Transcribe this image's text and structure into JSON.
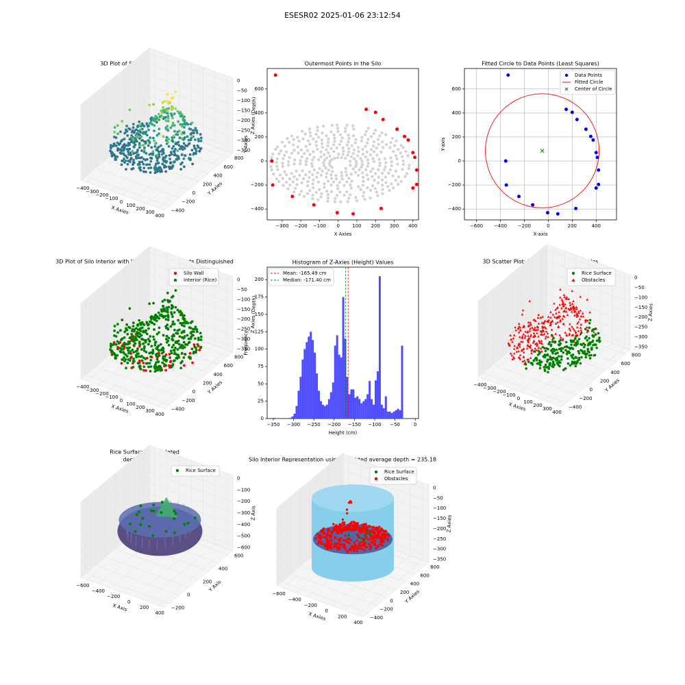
{
  "figure": {
    "suptitle": "ESESR02 2025-01-06 23:12:54"
  },
  "colors": {
    "red": "#ff0000",
    "green": "#008000",
    "blue": "#0000ff",
    "grey": "#d3d3d3",
    "hist": "#4d4dff",
    "cyan": "#87ceeb",
    "grid": "#b0b0b0"
  },
  "chart_data": [
    {
      "id": "p1",
      "type": "scatter3d",
      "title": "3D Plot of Silo Interior(row data)",
      "xlabel": "X Axies",
      "ylabel": "Y Axies",
      "zlabel": "Z Axies (Depth)",
      "xticks": [
        "−400",
        "−300",
        "−200",
        "−100",
        "0",
        "100",
        "200",
        "300",
        "400"
      ],
      "yticks": [
        "−400",
        "−200",
        "0",
        "200",
        "400",
        "600",
        "800"
      ],
      "zticks": [
        "0",
        "−50",
        "−100",
        "−150",
        "−200",
        "−250",
        "−300",
        "−350"
      ],
      "colormap": "viridis"
    },
    {
      "id": "p2",
      "type": "scatter",
      "title": "Outermost Points in the Silo",
      "xlabel": "X Axies",
      "ylabel": "Y Axies",
      "xlim": [
        -380,
        430
      ],
      "ylim": [
        -490,
        770
      ],
      "xticks": [
        -300,
        -200,
        -100,
        0,
        100,
        200,
        300,
        400
      ],
      "yticks": [
        -400,
        -200,
        0,
        200,
        400,
        600
      ],
      "series": [
        {
          "role": "outermost",
          "color": "#ff0000",
          "x": [
            -335,
            -355,
            -350,
            -245,
            -130,
            -5,
            80,
            150,
            200,
            240,
            315,
            355,
            375,
            400,
            410,
            420,
            420,
            400,
            230
          ],
          "y": [
            715,
            0,
            -200,
            -295,
            -365,
            -430,
            -440,
            430,
            405,
            345,
            265,
            205,
            175,
            70,
            30,
            -75,
            -195,
            -225,
            -395
          ]
        }
      ]
    },
    {
      "id": "p3",
      "type": "scatter",
      "title": "Fitted Circle to Data Points (Least Squares)",
      "xlabel": "X-axis",
      "ylabel": "Y-axis",
      "xlim": [
        -700,
        570
      ],
      "ylim": [
        -490,
        770
      ],
      "xticks": [
        -600,
        -400,
        -200,
        0,
        200,
        400
      ],
      "yticks": [
        -400,
        -200,
        0,
        200,
        400,
        600
      ],
      "grid": true,
      "legend": [
        "Data Points",
        "Fitted Circle",
        "Center of Circle"
      ],
      "legend_position": "upper right",
      "circle": {
        "cx": -50,
        "cy": 85,
        "r": 475
      },
      "center": {
        "x": -50,
        "y": 85
      },
      "points": {
        "x": [
          -335,
          -355,
          -350,
          -245,
          -130,
          -5,
          80,
          150,
          200,
          240,
          315,
          355,
          375,
          400,
          410,
          420,
          420,
          400,
          230
        ],
        "y": [
          715,
          0,
          -200,
          -295,
          -365,
          -430,
          -440,
          430,
          405,
          345,
          265,
          205,
          175,
          70,
          30,
          -75,
          -195,
          -225,
          -395
        ]
      }
    },
    {
      "id": "p4",
      "type": "scatter3d",
      "title": "3D Plot of Silo Interior with Wall and Interior Points Distinguished",
      "xlabel": "X Axies",
      "ylabel": "Y Axies",
      "zlabel": "Z Axies (Depth)",
      "xticks": [
        "−400",
        "−300",
        "−200",
        "−100",
        "0",
        "100",
        "200",
        "300",
        "400"
      ],
      "yticks": [
        "−400",
        "−200",
        "0",
        "200",
        "400",
        "600",
        "800"
      ],
      "zticks": [
        "0",
        "−50",
        "−100",
        "−150",
        "−200",
        "−250",
        "−300",
        "−350"
      ],
      "legend": [
        "Silo Wall",
        "Interior (Rice)"
      ],
      "legend_position": "upper right"
    },
    {
      "id": "p5",
      "type": "histogram",
      "title": "Histogram of Z-Axies (Height) Values",
      "xlabel": "Height (cm)",
      "ylabel": "Frequency",
      "xlim": [
        -365,
        8
      ],
      "ylim": [
        0,
        218
      ],
      "xticks": [
        -350,
        -300,
        -250,
        -200,
        -150,
        -100,
        -50,
        0
      ],
      "yticks": [
        0,
        25,
        50,
        75,
        100,
        125,
        150,
        175,
        200
      ],
      "bin_start": -350,
      "bin_width": 5,
      "counts": [
        1,
        0,
        0,
        0,
        0,
        0,
        0,
        0,
        1,
        3,
        7,
        18,
        40,
        60,
        85,
        100,
        110,
        118,
        125,
        113,
        95,
        65,
        40,
        25,
        20,
        18,
        20,
        28,
        38,
        52,
        105,
        120,
        92,
        88,
        175,
        115,
        60,
        35,
        42,
        42,
        30,
        32,
        28,
        22,
        25,
        28,
        35,
        54,
        28,
        20,
        55,
        68,
        205,
        20,
        15,
        32,
        10,
        10,
        8,
        10,
        12,
        14,
        12,
        105
      ],
      "mean": -165.49,
      "median": -171.4,
      "legend": [
        "Mean: -165.49 cm",
        "Median: -171.40 cm"
      ],
      "legend_position": "upper left"
    },
    {
      "id": "p6",
      "type": "scatter3d",
      "title": "3D Scatter Plot: Rice Surface vs Obstacles",
      "xlabel": "X Axies",
      "ylabel": "Y Axies",
      "zlabel": "Z Axies",
      "xticks": [
        "−400",
        "−300",
        "−200",
        "−100",
        "0",
        "100",
        "200",
        "300",
        "400"
      ],
      "yticks": [
        "−400",
        "−200",
        "0",
        "200",
        "400",
        "600",
        "800"
      ],
      "zticks": [
        "0",
        "−50",
        "−100",
        "−150",
        "−200",
        "−250",
        "−300",
        "−350"
      ],
      "legend": [
        "Rice Surface",
        "Obstacles"
      ],
      "legend_position": "upper right"
    },
    {
      "id": "p7",
      "type": "surface3d",
      "title": "Rice Surface Interpolated",
      "subtitle": "depth = 235.18",
      "xlabel": "X Axis",
      "ylabel": "Y Axis",
      "zlabel": "Z Axis",
      "xticks": [
        "−600",
        "−400",
        "−200",
        "0",
        "200",
        "400"
      ],
      "yticks": [
        "−200",
        "0",
        "200",
        "400",
        "600"
      ],
      "zticks": [
        "0",
        "−100",
        "−200",
        "−300",
        "−400",
        "−500",
        "−600"
      ],
      "legend": [
        "Rice Surface"
      ],
      "legend_position": "upper right"
    },
    {
      "id": "p8",
      "type": "scatter3d",
      "title": "Silo Interior Representation using weighted average depth = 235.18",
      "xlabel": "X Axies",
      "ylabel": "Y Axies",
      "zlabel": "Z Axies",
      "xticks": [
        "−600",
        "−400",
        "−200",
        "0",
        "200",
        "400"
      ],
      "yticks": [
        "−400",
        "−200",
        "0",
        "200",
        "400",
        "600",
        "800"
      ],
      "zticks": [
        "0",
        "−50",
        "−100",
        "−150",
        "−200",
        "−250",
        "−300",
        "−350"
      ],
      "legend": [
        "Rice Surface",
        "Obstacles"
      ],
      "legend_position": "upper right"
    }
  ]
}
